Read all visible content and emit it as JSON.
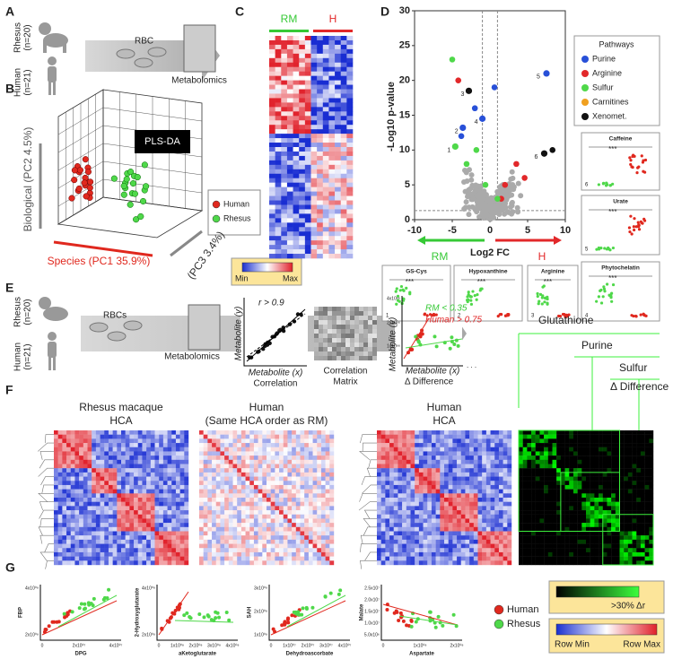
{
  "panels": {
    "A": {
      "letter": "A",
      "rhesus": [
        "Rhesus",
        "(n=20)"
      ],
      "human": [
        "Human",
        "(n=21)"
      ],
      "rbc": "RBC",
      "metabolomics": "Metabolomics"
    },
    "B": {
      "letter": "B",
      "method": "PLS-DA",
      "y_axis": "Biological (PC2 4.5%)",
      "x_axis": "Species (PC1 35.9%)",
      "z_axis": "(PC3 3.4%)",
      "legend": [
        {
          "name": "Human",
          "color": "#e0281e"
        },
        {
          "name": "Rhesus",
          "color": "#4fd84a"
        }
      ]
    },
    "C": {
      "letter": "C",
      "groups": [
        {
          "name": "RM",
          "color": "#36c936"
        },
        {
          "name": "H",
          "color": "#e2282a"
        }
      ],
      "scale": [
        "Min",
        "Max"
      ]
    },
    "D": {
      "letter": "D",
      "y_axis": "-Log10 p-value",
      "x_axis": "Log2 FC",
      "xlim": [
        -10,
        10
      ],
      "ylim": [
        0,
        30
      ],
      "xticks": [
        -10,
        -5,
        0,
        5,
        10
      ],
      "yticks": [
        0,
        5,
        10,
        15,
        20,
        25,
        30
      ],
      "directions": [
        {
          "name": "RM",
          "color": "#36c936"
        },
        {
          "name": "H",
          "color": "#e2282a"
        }
      ],
      "legend_title": "Pathways",
      "legend": [
        {
          "name": "Purine",
          "color": "#2850d8"
        },
        {
          "name": "Arginine",
          "color": "#e2282a"
        },
        {
          "name": "Sulfur",
          "color": "#4fd84a"
        },
        {
          "name": "Carnitines",
          "color": "#f0a020"
        },
        {
          "name": "Xenomet.",
          "color": "#111111"
        }
      ],
      "points": [
        {
          "label": "1",
          "x": -4.6,
          "y": 10.5,
          "color": "#4fd84a"
        },
        {
          "label": "2",
          "x": -3.6,
          "y": 13.2,
          "color": "#2850d8"
        },
        {
          "label": "3",
          "x": -2.8,
          "y": 18.5,
          "color": "#111111"
        },
        {
          "label": "4",
          "x": -1,
          "y": 14.5,
          "color": "#2850d8"
        },
        {
          "label": "5",
          "x": 7.5,
          "y": 21,
          "color": "#2850d8"
        },
        {
          "label": "6",
          "x": 7.2,
          "y": 9.5,
          "color": "#111111"
        }
      ],
      "insets": [
        "Caffeine",
        "Urate",
        "GS-Cys",
        "Hypoxanthine",
        "Arginine",
        "Phytochelatin"
      ],
      "inset_numbers": [
        "6",
        "5",
        "1",
        "2",
        "3",
        "4"
      ],
      "significance": "***"
    },
    "E": {
      "letter": "E",
      "rhesus": [
        "Rhesus",
        "(n=20)"
      ],
      "human": [
        "Human",
        "(n=21)"
      ],
      "rbcs": "RBCs",
      "metabolomics": "Metabolomics",
      "threshold": "r > 0.9",
      "y_label": "Metabolite (y)",
      "x_label": "Metabolite (x)",
      "correlation": "Correlation",
      "matrix": [
        "Correlation",
        "Matrix"
      ],
      "rm_rule": "RM < 0.35",
      "human_rule": "Human > 0.75",
      "difference": "Δ Difference",
      "y_ticks": [
        "4x10⁶⁶",
        "2x10⁶⁶",
        "1x10⁶⁶"
      ],
      "x_dots": ". . .",
      "modules": [
        "Glutathione",
        "Purine",
        "Sulfur"
      ],
      "module_title": "Δ Difference"
    },
    "F": {
      "letter": "F",
      "titles": [
        [
          "Rhesus macaque",
          "HCA"
        ],
        [
          "Human",
          "(Same HCA order as RM)"
        ],
        [
          "Human",
          "HCA"
        ]
      ]
    },
    "G": {
      "letter": "G",
      "plots": [
        {
          "y": "FBP",
          "x": "DPG",
          "yticks": [
            "4x10⁰⁸",
            "2x10⁰⁸"
          ],
          "xticks": [
            "0",
            "2x10⁰⁷",
            "4x10⁰⁷"
          ]
        },
        {
          "y": "2-Hydroxyglutarate",
          "x": "aKetoglutarate",
          "yticks": [
            "4x10⁰⁸",
            "2x10⁰⁸"
          ],
          "xticks": [
            "0",
            "1x10⁰⁸",
            "2x10⁰⁸",
            "3x10⁰⁸",
            "4x10⁰⁸"
          ]
        },
        {
          "y": "SAH",
          "x": "Dehydroascorbate",
          "yticks": [
            "3x10⁰⁸",
            "2x10⁰⁸",
            "1x10⁰⁸"
          ],
          "xticks": [
            "0",
            "1x10⁰⁷",
            "2x10⁰⁷",
            "3x10⁰⁷",
            "4x10⁰⁷"
          ]
        },
        {
          "y": "Malate",
          "x": "Aspartate",
          "yticks": [
            "2.5x10⁷",
            "2.0x10⁷",
            "1.5x10⁷",
            "1.0x10⁷",
            "5.0x10⁶"
          ],
          "xticks": [
            "0",
            "1x10⁰⁸",
            "2x10⁰⁸"
          ]
        }
      ],
      "legend": [
        {
          "name": "Human",
          "color": "#e0281e"
        },
        {
          "name": "Rhesus",
          "color": "#4fd84a"
        }
      ],
      "delta_scale": ">30% Δr",
      "row_scale": [
        "Row Min",
        "Row Max"
      ]
    }
  }
}
